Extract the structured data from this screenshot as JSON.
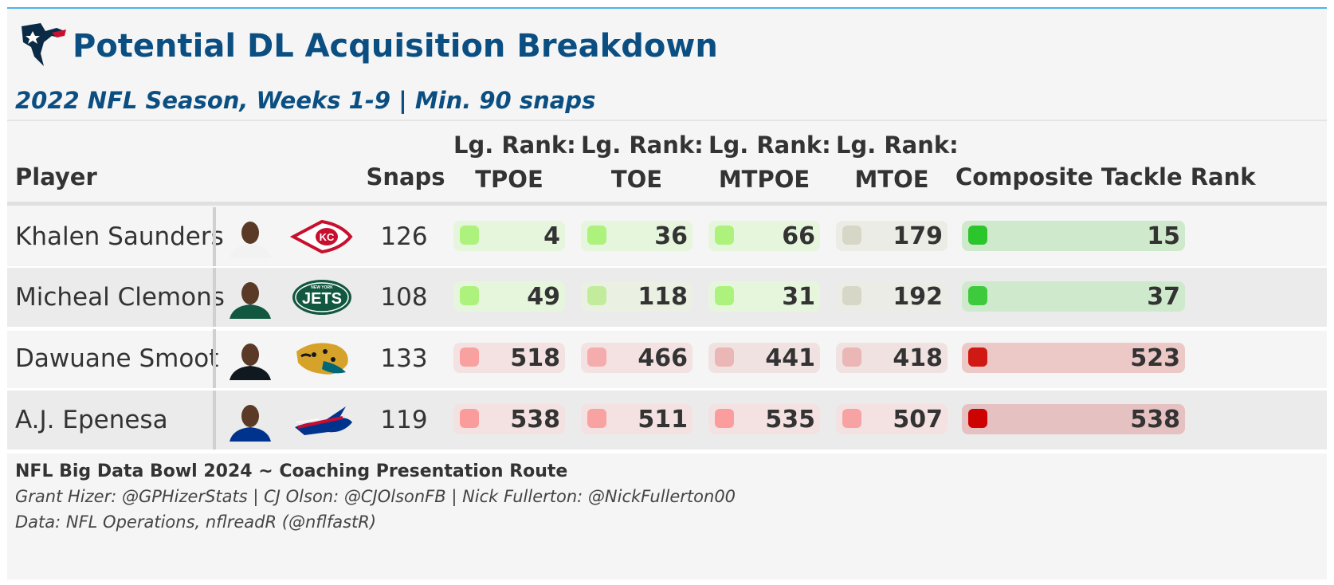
{
  "header": {
    "title": "Potential DL Acquisition Breakdown",
    "subtitle": "2022 NFL Season, Weeks 1-9 | Min. 90 snaps",
    "logo_icon": "texans-logo-icon"
  },
  "columns": {
    "player": "Player",
    "snaps": "Snaps",
    "tpoe": [
      "Lg. Rank:",
      "TPOE"
    ],
    "toe": [
      "Lg. Rank:",
      "TOE"
    ],
    "mtpoe": [
      "Lg. Rank:",
      "MTPOE"
    ],
    "mtoe": [
      "Lg. Rank:",
      "MTOE"
    ],
    "composite": "Composite Tackle Rank"
  },
  "chart_data": {
    "type": "table",
    "columns": [
      "Player",
      "Snaps",
      "Lg. Rank: TPOE",
      "Lg. Rank: TOE",
      "Lg. Rank: MTPOE",
      "Lg. Rank: MTOE",
      "Composite Tackle Rank"
    ],
    "rows": [
      {
        "player": "Khalen Saunders",
        "team_icon": "chiefs-logo-icon",
        "snaps": 126,
        "tpoe": 4,
        "toe": 36,
        "mtpoe": 66,
        "mtoe": 179,
        "composite": 15
      },
      {
        "player": "Micheal Clemons",
        "team_icon": "jets-logo-icon",
        "snaps": 108,
        "tpoe": 49,
        "toe": 118,
        "mtpoe": 31,
        "mtoe": 192,
        "composite": 37
      },
      {
        "player": "Dawuane Smoot",
        "team_icon": "jaguars-logo-icon",
        "snaps": 133,
        "tpoe": 518,
        "toe": 466,
        "mtpoe": 441,
        "mtoe": 418,
        "composite": 523
      },
      {
        "player": "A.J. Epenesa",
        "team_icon": "bills-logo-icon",
        "snaps": 119,
        "tpoe": 538,
        "toe": 511,
        "mtpoe": 535,
        "mtoe": 507,
        "composite": 538
      }
    ],
    "colors": {
      "good_light": "#adf27c",
      "good_mid": "#c8dfb9",
      "good_strong": "#1fc21f",
      "bad_light": "#f4a7a7",
      "bad_strong": "#cc0000",
      "neutral": "#d7d7c8"
    }
  },
  "footer": {
    "line1": "NFL Big Data Bowl 2024 ~ Coaching Presentation Route",
    "line2": "Grant Hizer: @GPHizerStats | CJ Olson: @CJOlsonFB | Nick Fullerton: @NickFullerton00",
    "line3": "Data: NFL Operations, nflreadR (@nflfastR)"
  }
}
